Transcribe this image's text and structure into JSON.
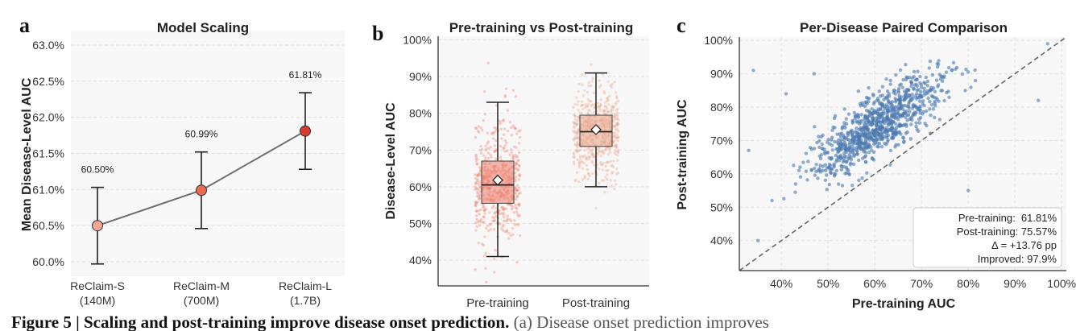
{
  "chart_data": [
    {
      "panel_label": "a",
      "type": "line",
      "title": "Model Scaling",
      "xlabel": "",
      "ylabel": "Mean Disease-Level AUC",
      "categories": [
        "ReClaim-S\n(140M)",
        "ReClaim-M\n(700M)",
        "ReClaim-L\n(1.7B)"
      ],
      "values": [
        60.5,
        60.99,
        61.81
      ],
      "error_low": [
        59.97,
        60.46,
        61.28
      ],
      "error_high": [
        61.03,
        61.52,
        62.34
      ],
      "point_labels": [
        "60.50%",
        "60.99%",
        "61.81%"
      ],
      "point_colors": [
        "#f4a698",
        "#e8694f",
        "#d83a2e"
      ],
      "yticks": [
        "60.0%",
        "60.5%",
        "61.0%",
        "61.5%",
        "62.0%",
        "62.5%",
        "63.0%"
      ],
      "ylim": [
        59.8,
        63.2
      ],
      "grid": true
    },
    {
      "panel_label": "b",
      "type": "box",
      "title": "Pre-training vs Post-training",
      "xlabel": "",
      "ylabel": "Disease-Level AUC",
      "categories": [
        "Pre-training",
        "Post-training"
      ],
      "boxes": [
        {
          "whisker_low": 41,
          "q1": 55.5,
          "median": 60.5,
          "q3": 67,
          "whisker_high": 83,
          "mean": 61.81,
          "color": "#ee7b68"
        },
        {
          "whisker_low": 60,
          "q1": 71,
          "median": 75,
          "q3": 79.5,
          "whisker_high": 91,
          "mean": 75.57,
          "color": "#e8a488"
        }
      ],
      "yticks": [
        "40%",
        "50%",
        "60%",
        "70%",
        "80%",
        "90%",
        "100%"
      ],
      "ylim": [
        33,
        101
      ],
      "grid": true
    },
    {
      "panel_label": "c",
      "type": "scatter",
      "title": "Per-Disease Paired Comparison",
      "xlabel": "Pre-training AUC",
      "ylabel": "Post-training AUC",
      "xticks": [
        "40%",
        "50%",
        "60%",
        "70%",
        "80%",
        "90%",
        "100%"
      ],
      "yticks": [
        "40%",
        "50%",
        "60%",
        "70%",
        "80%",
        "90%",
        "100%"
      ],
      "xlim": [
        31,
        101
      ],
      "ylim": [
        31,
        101
      ],
      "reference_line": "y = x",
      "point_color": "#4a78b0",
      "stats_box": [
        "Pre-training:  61.81%",
        "Post-training: 75.57%",
        "Δ = +13.76 pp",
        "Improved: 97.9%"
      ],
      "grid": true
    }
  ],
  "caption": {
    "bold": "Figure 5 | Scaling and post-training improve disease onset prediction.",
    "rest": " (a) Disease onset prediction improves"
  }
}
